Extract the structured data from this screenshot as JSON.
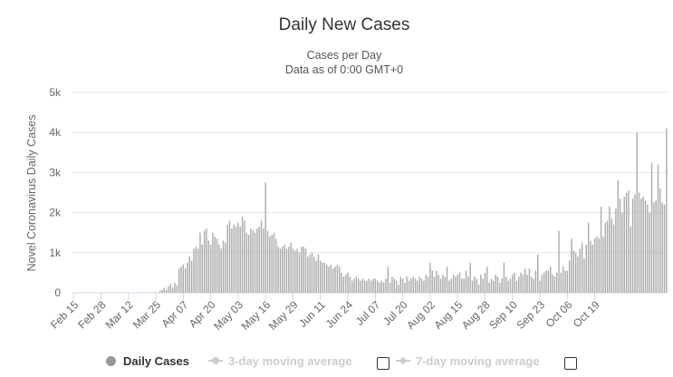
{
  "chart_data": {
    "type": "bar",
    "title": "Daily New Cases",
    "subtitle_lines": [
      "Cases per Day",
      "Data as of 0:00 GMT+0"
    ],
    "ylabel": "Novel Coronavirus Daily Cases",
    "ylim": [
      0,
      5000
    ],
    "yticks": [
      0,
      1000,
      2000,
      3000,
      4000,
      5000
    ],
    "ytick_labels": [
      "0",
      "1k",
      "2k",
      "3k",
      "4k",
      "5k"
    ],
    "xtick_labels": [
      "Feb 15",
      "Feb 28",
      "Mar 12",
      "Mar 25",
      "Apr 07",
      "Apr 20",
      "May 03",
      "May 16",
      "May 29",
      "Jun 11",
      "Jun 24",
      "Jul 07",
      "Jul 20",
      "Aug 02",
      "Aug 15",
      "Aug 28",
      "Sep 10",
      "Sep 23",
      "Oct 06",
      "Oct 19"
    ],
    "grid": true,
    "color": "#a9a9a9",
    "start_date": "Feb 15",
    "values": [
      0,
      0,
      0,
      0,
      0,
      0,
      0,
      0,
      0,
      0,
      0,
      0,
      0,
      0,
      0,
      0,
      0,
      0,
      0,
      0,
      0,
      0,
      0,
      0,
      0,
      0,
      0,
      0,
      0,
      0,
      0,
      0,
      0,
      0,
      0,
      0,
      0,
      0,
      0,
      0,
      0,
      50,
      80,
      120,
      70,
      160,
      220,
      130,
      250,
      180,
      600,
      650,
      700,
      600,
      750,
      900,
      800,
      1100,
      1150,
      1100,
      1500,
      1200,
      1550,
      1600,
      1300,
      1200,
      1500,
      1400,
      1350,
      1200,
      1100,
      1300,
      1250,
      1700,
      1800,
      1600,
      1700,
      1650,
      1750,
      1650,
      1900,
      1800,
      1500,
      1450,
      1600,
      1550,
      1500,
      1600,
      1650,
      1800,
      1600,
      2750,
      1550,
      1400,
      1450,
      1500,
      1350,
      1150,
      1100,
      1150,
      1200,
      1100,
      1150,
      1250,
      1100,
      1050,
      1100,
      1000,
      1150,
      1150,
      1100,
      900,
      950,
      1000,
      900,
      800,
      950,
      800,
      750,
      750,
      700,
      650,
      700,
      600,
      650,
      700,
      650,
      500,
      400,
      450,
      500,
      400,
      300,
      350,
      400,
      350,
      300,
      350,
      300,
      300,
      350,
      300,
      350,
      350,
      300,
      250,
      300,
      250,
      350,
      650,
      250,
      400,
      350,
      300,
      200,
      400,
      350,
      250,
      400,
      300,
      350,
      400,
      350,
      300,
      400,
      350,
      300,
      450,
      400,
      750,
      550,
      400,
      550,
      450,
      350,
      450,
      400,
      650,
      300,
      350,
      450,
      400,
      450,
      500,
      350,
      350,
      550,
      400,
      750,
      300,
      400,
      350,
      200,
      450,
      350,
      500,
      650,
      250,
      350,
      300,
      450,
      400,
      250,
      350,
      750,
      400,
      300,
      350,
      450,
      500,
      300,
      400,
      500,
      450,
      600,
      450,
      600,
      400,
      350,
      550,
      950,
      300,
      450,
      500,
      550,
      550,
      650,
      450,
      400,
      500,
      1550,
      500,
      650,
      550,
      550,
      800,
      1350,
      1050,
      1000,
      900,
      1100,
      1250,
      850,
      1200,
      1750,
      1300,
      1200,
      1350,
      1400,
      1350,
      2150,
      1400,
      1750,
      1800,
      2150,
      1850,
      1700,
      2100,
      2800,
      2350,
      2000,
      2400,
      2500,
      2550,
      1650,
      2350,
      2450,
      4000,
      2500,
      2350,
      2400,
      2300,
      2200,
      2000,
      3250,
      2250,
      2300,
      3200,
      2600,
      2250,
      2200,
      4100
    ]
  },
  "legend": {
    "items": [
      {
        "label": "Daily Cases",
        "active": true
      },
      {
        "label": "3-day moving average",
        "active": false
      },
      {
        "label": "7-day moving average",
        "active": false
      }
    ]
  }
}
